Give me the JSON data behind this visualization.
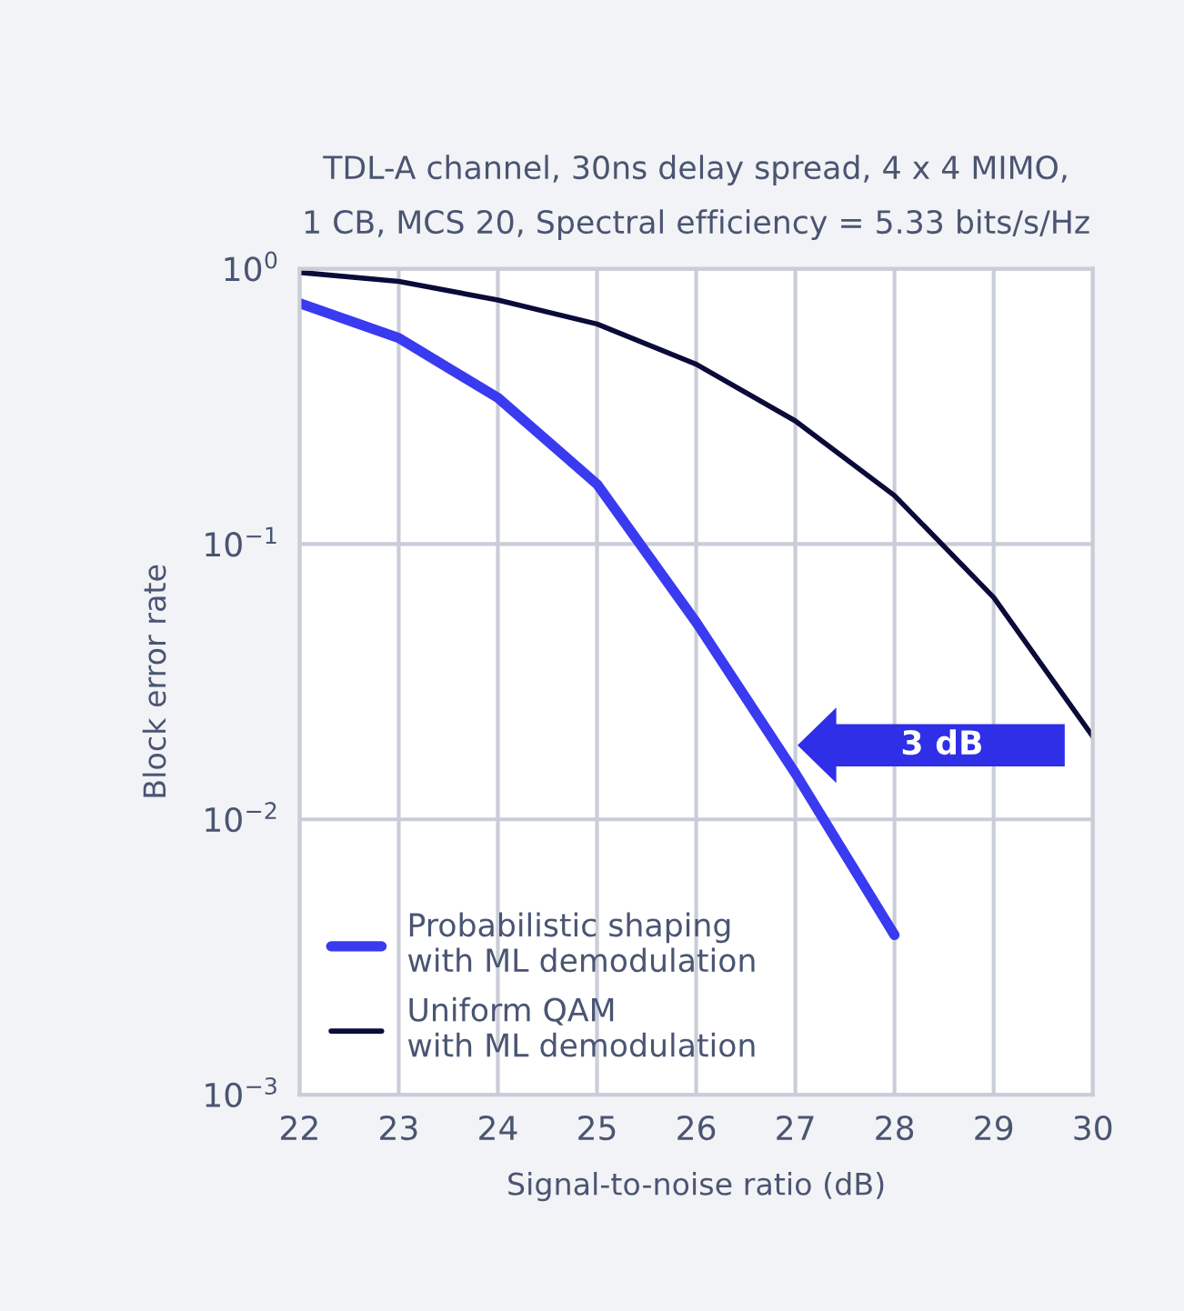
{
  "chart_data": {
    "type": "line",
    "title": "TDL-A channel, 30ns delay spread, 4 x 4 MIMO,\n1 CB, MCS 20, Spectral efficiency = 5.33 bits/s/Hz",
    "xlabel": "Signal-to-noise ratio (dB)",
    "ylabel": "Block error rate",
    "x": [
      22,
      23,
      24,
      25,
      26,
      27,
      28,
      29,
      30
    ],
    "series": [
      {
        "name": "Probabilistic shaping\nwith ML demodulation",
        "color": "#3a3af0",
        "values": [
          0.75,
          0.56,
          0.34,
          0.165,
          0.052,
          0.0147,
          0.0038,
          null,
          null
        ]
      },
      {
        "name": "Uniform QAM\nwith ML demodulation",
        "color": "#0b0b3a",
        "values": [
          0.97,
          0.9,
          0.77,
          0.63,
          0.45,
          0.28,
          0.15,
          0.064,
          0.02
        ]
      }
    ],
    "annotations": [
      "3 dB"
    ],
    "log": "y",
    "xlim": [
      22,
      30
    ],
    "ylim": [
      0.001,
      1
    ],
    "xticks": [
      22,
      23,
      24,
      25,
      26,
      27,
      28,
      29,
      30
    ],
    "yticks": [
      {
        "value": 1,
        "label": "10$^{0}$"
      },
      {
        "value": 0.1,
        "label": "10$^{−1}$"
      },
      {
        "value": 0.01,
        "label": "10$^{−2}$"
      },
      {
        "value": 0.001,
        "label": "10$^{−3}$"
      }
    ],
    "grid": true,
    "legend": "bottom left"
  }
}
